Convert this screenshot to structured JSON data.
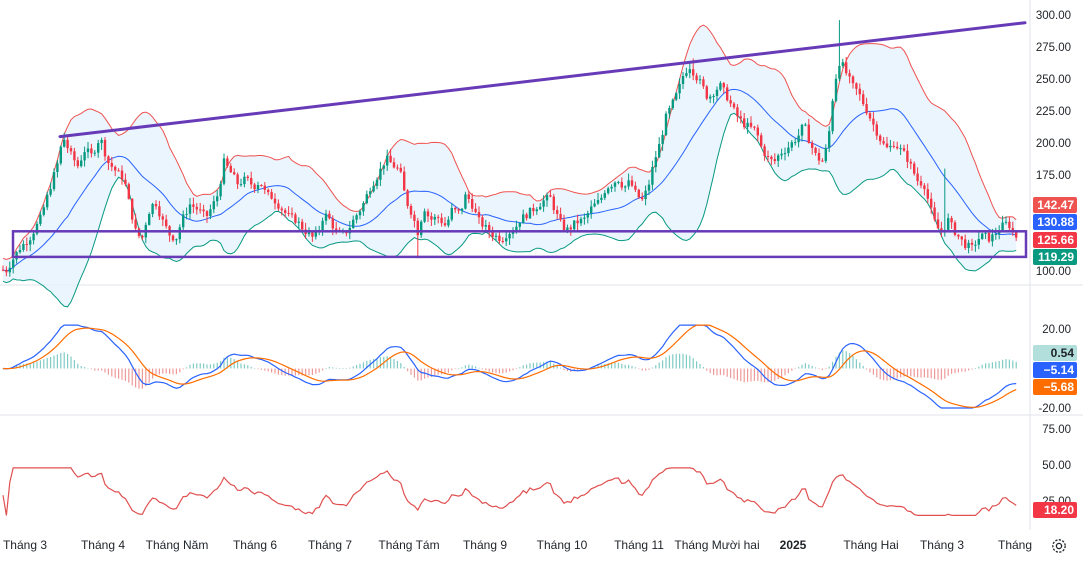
{
  "chart_data": [
    {
      "type": "candlestick",
      "panel": "price",
      "y_ticks": [
        "300.00",
        "275.00",
        "250.00",
        "225.00",
        "200.00",
        "175.00",
        "150.00",
        "125.00",
        "100.00"
      ],
      "ylim": [
        95,
        305
      ],
      "scale": "linear",
      "grid": false,
      "overlays": [
        "bollinger-upper",
        "bollinger-middle",
        "bollinger-lower",
        "trendline",
        "range-box"
      ],
      "price_path": [
        [
          0,
          102
        ],
        [
          6,
          100
        ],
        [
          12,
          108
        ],
        [
          20,
          118
        ],
        [
          30,
          126
        ],
        [
          40,
          140
        ],
        [
          50,
          165
        ],
        [
          58,
          185
        ],
        [
          63,
          205
        ],
        [
          70,
          192
        ],
        [
          78,
          182
        ],
        [
          85,
          195
        ],
        [
          92,
          190
        ],
        [
          100,
          205
        ],
        [
          108,
          185
        ],
        [
          116,
          178
        ],
        [
          124,
          172
        ],
        [
          130,
          150
        ],
        [
          136,
          130
        ],
        [
          142,
          125
        ],
        [
          148,
          145
        ],
        [
          155,
          155
        ],
        [
          162,
          140
        ],
        [
          170,
          128
        ],
        [
          176,
          125
        ],
        [
          182,
          140
        ],
        [
          190,
          152
        ],
        [
          198,
          148
        ],
        [
          206,
          142
        ],
        [
          212,
          150
        ],
        [
          218,
          160
        ],
        [
          224,
          185
        ],
        [
          230,
          178
        ],
        [
          238,
          168
        ],
        [
          246,
          172
        ],
        [
          254,
          166
        ],
        [
          260,
          170
        ],
        [
          266,
          160
        ],
        [
          272,
          158
        ],
        [
          280,
          150
        ],
        [
          288,
          143
        ],
        [
          296,
          140
        ],
        [
          304,
          132
        ],
        [
          312,
          126
        ],
        [
          318,
          130
        ],
        [
          324,
          145
        ],
        [
          330,
          140
        ],
        [
          336,
          130
        ],
        [
          342,
          128
        ],
        [
          348,
          132
        ],
        [
          355,
          142
        ],
        [
          362,
          150
        ],
        [
          370,
          165
        ],
        [
          378,
          175
        ],
        [
          386,
          188
        ],
        [
          394,
          182
        ],
        [
          400,
          178
        ],
        [
          406,
          155
        ],
        [
          412,
          145
        ],
        [
          418,
          130
        ],
        [
          424,
          150
        ],
        [
          430,
          140
        ],
        [
          438,
          142
        ],
        [
          446,
          135
        ],
        [
          452,
          148
        ],
        [
          460,
          145
        ],
        [
          466,
          160
        ],
        [
          472,
          152
        ],
        [
          478,
          140
        ],
        [
          484,
          135
        ],
        [
          490,
          130
        ],
        [
          496,
          127
        ],
        [
          502,
          125
        ],
        [
          508,
          130
        ],
        [
          514,
          132
        ],
        [
          520,
          140
        ],
        [
          528,
          145
        ],
        [
          536,
          150
        ],
        [
          544,
          155
        ],
        [
          550,
          158
        ],
        [
          556,
          145
        ],
        [
          562,
          135
        ],
        [
          568,
          132
        ],
        [
          576,
          138
        ],
        [
          584,
          140
        ],
        [
          592,
          150
        ],
        [
          600,
          155
        ],
        [
          606,
          165
        ],
        [
          612,
          168
        ],
        [
          618,
          172
        ],
        [
          624,
          165
        ],
        [
          630,
          170
        ],
        [
          636,
          160
        ],
        [
          642,
          155
        ],
        [
          648,
          165
        ],
        [
          654,
          185
        ],
        [
          660,
          200
        ],
        [
          666,
          220
        ],
        [
          672,
          230
        ],
        [
          678,
          240
        ],
        [
          684,
          255
        ],
        [
          690,
          260
        ],
        [
          696,
          252
        ],
        [
          702,
          245
        ],
        [
          708,
          235
        ],
        [
          714,
          240
        ],
        [
          720,
          245
        ],
        [
          726,
          238
        ],
        [
          732,
          228
        ],
        [
          738,
          220
        ],
        [
          744,
          215
        ],
        [
          750,
          212
        ],
        [
          756,
          210
        ],
        [
          762,
          195
        ],
        [
          768,
          188
        ],
        [
          774,
          185
        ],
        [
          780,
          192
        ],
        [
          786,
          195
        ],
        [
          792,
          200
        ],
        [
          798,
          205
        ],
        [
          804,
          215
        ],
        [
          810,
          200
        ],
        [
          816,
          190
        ],
        [
          822,
          185
        ],
        [
          828,
          200
        ],
        [
          834,
          245
        ],
        [
          840,
          265
        ],
        [
          846,
          255
        ],
        [
          852,
          245
        ],
        [
          858,
          240
        ],
        [
          864,
          230
        ],
        [
          870,
          220
        ],
        [
          876,
          210
        ],
        [
          882,
          200
        ],
        [
          888,
          195
        ],
        [
          894,
          200
        ],
        [
          900,
          195
        ],
        [
          906,
          190
        ],
        [
          912,
          180
        ],
        [
          918,
          170
        ],
        [
          924,
          168
        ],
        [
          930,
          150
        ],
        [
          936,
          135
        ],
        [
          942,
          130
        ],
        [
          948,
          140
        ],
        [
          954,
          132
        ],
        [
          960,
          125
        ],
        [
          966,
          120
        ],
        [
          972,
          118
        ],
        [
          978,
          125
        ],
        [
          984,
          128
        ],
        [
          990,
          125
        ],
        [
          996,
          130
        ],
        [
          1002,
          135
        ],
        [
          1008,
          138
        ],
        [
          1014,
          128
        ],
        [
          1020,
          125
        ]
      ],
      "annotations": [
        {
          "label": "142.47",
          "color": "#ef5350",
          "role": "bollinger-upper"
        },
        {
          "label": "130.88",
          "color": "#2962ff",
          "role": "bollinger-middle"
        },
        {
          "label": "125.66",
          "color": "#f23645",
          "role": "last-price"
        },
        {
          "label": "119.29",
          "color": "#089981",
          "role": "bollinger-lower"
        }
      ]
    },
    {
      "type": "line",
      "panel": "macd",
      "y_ticks": [
        "20.00",
        "-20.00"
      ],
      "ylim": [
        -22,
        25
      ],
      "series": [
        {
          "role": "macd-line",
          "color": "#2962ff"
        },
        {
          "role": "signal-line",
          "color": "#ff6d00"
        },
        {
          "role": "histogram",
          "color": "#26a69a",
          "negative_color": "#ef5350"
        }
      ],
      "annotations": [
        {
          "label": "0.54",
          "color": "#b2dfdb"
        },
        {
          "label": "−5.14",
          "color": "#2962ff"
        },
        {
          "label": "−5.68",
          "color": "#ff6d00"
        }
      ]
    },
    {
      "type": "line",
      "panel": "rsi",
      "y_ticks": [
        "75.00",
        "50.00",
        "25.00"
      ],
      "ylim": [
        14,
        86
      ],
      "series": [
        {
          "role": "indicator-line",
          "color": "#e05050"
        }
      ],
      "annotations": [
        {
          "label": "18.20",
          "color": "#f23645"
        }
      ]
    }
  ],
  "x_axis": {
    "labels": [
      "Tháng 3",
      "Tháng 4",
      "Tháng Năm",
      "Tháng 6",
      "Tháng 7",
      "Tháng Tám",
      "Tháng 9",
      "Tháng 10",
      "Tháng 11",
      "Tháng Mười hai",
      "2025",
      "Tháng Hai",
      "Tháng 3",
      "Tháng"
    ],
    "bold_label": "2025"
  },
  "colors": {
    "up": "#089981",
    "down": "#f23645",
    "band_fill": "#e3f2fd",
    "trendline": "#673ab7",
    "upper_band": "#ef5350",
    "middle_band": "#2962ff",
    "lower_band": "#089981"
  },
  "icons": {
    "settings": "gear-icon"
  }
}
